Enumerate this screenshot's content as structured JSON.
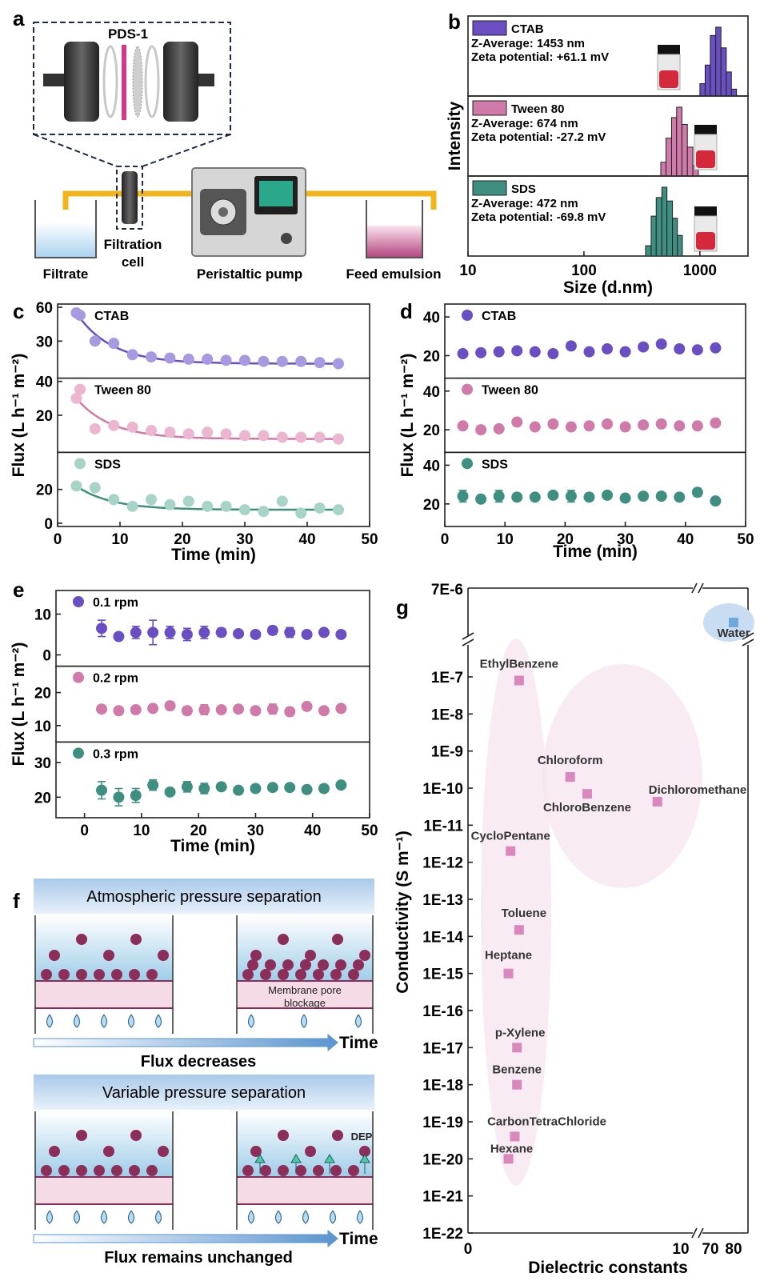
{
  "panel_letters": [
    "a",
    "b",
    "c",
    "d",
    "e",
    "f",
    "g"
  ],
  "colors": {
    "purple": "#6a4fc2",
    "pink": "#cf7aa8",
    "teal": "#3f8f80",
    "bead": "#8c2e5a",
    "water_drop": "#b9dcf0",
    "membrane": "#f5dbe6"
  },
  "panel_a": {
    "zoom_label": "PDS-1",
    "labels": {
      "filtrate": "Filtrate",
      "filtration_cell": "Filtration\ncell",
      "pump": "Peristaltic pump",
      "feed": "Feed emulsion"
    }
  },
  "chart_data": [
    {
      "id": "b",
      "type": "bar",
      "xscale": "log",
      "xlim": [
        10,
        2600
      ],
      "xlabel": "Size (d.nm)",
      "ylabel": "Intensity",
      "xticks": [
        {
          "v": 10,
          "label": "10"
        },
        {
          "v": 100,
          "label": "100"
        },
        {
          "v": 1000,
          "label": "1000"
        }
      ],
      "series": [
        {
          "name": "CTAB",
          "color": "#6a4fc2",
          "z_average": "Z-Average: 1453 nm",
          "zeta": "Zeta potential: +61.1 mV",
          "bins": [
            1000,
            1110,
            1230,
            1370,
            1520,
            1690,
            1870
          ],
          "rel_height": [
            0.18,
            0.45,
            0.88,
            1.0,
            0.7,
            0.35,
            0.1
          ]
        },
        {
          "name": "Tween 80",
          "color": "#cf7aa8",
          "z_average": "Z-Average: 674 nm",
          "zeta": "Zeta potential: -27.2 mV",
          "bins": [
            460,
            510,
            570,
            630,
            700,
            780,
            870
          ],
          "rel_height": [
            0.2,
            0.55,
            0.85,
            1.0,
            0.75,
            0.42,
            0.15
          ]
        },
        {
          "name": "SDS",
          "color": "#3f8f80",
          "z_average": "Z-Average: 472 nm",
          "zeta": "Zeta potential: -69.8 mV",
          "bins": [
            340,
            380,
            420,
            470,
            520,
            580,
            640
          ],
          "rel_height": [
            0.15,
            0.58,
            0.85,
            1.0,
            0.8,
            0.55,
            0.3
          ]
        }
      ]
    },
    {
      "id": "c",
      "type": "scatter",
      "xlabel": "Time (min)",
      "ylabel": "Flux (L h⁻¹ m⁻²)",
      "xlim": [
        0,
        50
      ],
      "xticks": [
        0,
        10,
        20,
        30,
        40,
        50
      ],
      "x": [
        3,
        6,
        9,
        12,
        15,
        18,
        21,
        24,
        27,
        30,
        33,
        36,
        39,
        42,
        45
      ],
      "fit": true,
      "series": [
        {
          "name": "CTAB",
          "color": "#a89ae0",
          "line_color": "#6a4fc2",
          "ylim": [
            0,
            60
          ],
          "yticks": [
            {
              "v": 30,
              "label": "30"
            },
            {
              "v": 60,
              "label": "60"
            }
          ],
          "y": [
            55,
            30,
            28,
            18,
            16,
            15,
            14,
            14,
            13,
            13,
            12,
            12,
            12,
            11,
            10
          ]
        },
        {
          "name": "Tween 80",
          "color": "#edb6d0",
          "line_color": "#cf7aa8",
          "ylim": [
            0,
            40
          ],
          "yticks": [
            {
              "v": 20,
              "label": "20"
            },
            {
              "v": 40,
              "label": "40"
            }
          ],
          "y": [
            30,
            12,
            14,
            13,
            11,
            10,
            9,
            10,
            9,
            8,
            8,
            7,
            7,
            7,
            6
          ]
        },
        {
          "name": "SDS",
          "color": "#a7d3c9",
          "line_color": "#3f8f80",
          "ylim": [
            0,
            40
          ],
          "yticks": [
            {
              "v": 0,
              "label": "0"
            },
            {
              "v": 20,
              "label": "20"
            }
          ],
          "y": [
            22,
            21,
            14,
            10,
            14,
            11,
            13,
            10,
            10,
            8,
            7,
            13,
            6,
            9,
            8
          ]
        }
      ]
    },
    {
      "id": "d",
      "type": "scatter",
      "xlabel": "Time (min)",
      "ylabel": "Flux (L h⁻¹ m⁻²)",
      "xlim": [
        0,
        50
      ],
      "xticks": [
        0,
        10,
        20,
        30,
        40,
        50
      ],
      "x": [
        3,
        6,
        9,
        12,
        15,
        18,
        21,
        24,
        27,
        30,
        33,
        36,
        39,
        42,
        45
      ],
      "series": [
        {
          "name": "CTAB",
          "color": "#6a4fc2",
          "ylim": [
            10,
            45
          ],
          "yticks": [
            {
              "v": 20,
              "label": "20"
            },
            {
              "v": 40,
              "label": "40"
            }
          ],
          "y": [
            21,
            21.5,
            22,
            22.5,
            22,
            21,
            25,
            22,
            23.5,
            22,
            24.5,
            26,
            23.5,
            23,
            24
          ],
          "err": [
            1,
            1,
            1,
            1,
            1,
            1,
            1,
            1,
            1,
            1,
            1.5,
            1,
            1,
            1,
            1
          ]
        },
        {
          "name": "Tween 80",
          "color": "#cf7aa8",
          "ylim": [
            10,
            45
          ],
          "yticks": [
            {
              "v": 20,
              "label": "20"
            },
            {
              "v": 40,
              "label": "40"
            }
          ],
          "y": [
            22,
            20,
            20.5,
            24,
            21.5,
            23,
            21.5,
            22,
            23,
            21.5,
            22.5,
            23,
            22,
            22,
            23.5
          ],
          "err": [
            1.5,
            1.5,
            1,
            1,
            1,
            1,
            1,
            1,
            1,
            1,
            1,
            1,
            1,
            1,
            1
          ]
        },
        {
          "name": "SDS",
          "color": "#3f8f80",
          "ylim": [
            10,
            45
          ],
          "yticks": [
            {
              "v": 20,
              "label": "20"
            },
            {
              "v": 40,
              "label": "40"
            }
          ],
          "y": [
            24,
            22.5,
            24,
            23.5,
            23.5,
            24.5,
            24,
            23.5,
            24.5,
            23,
            24,
            24,
            23.5,
            26,
            21.5
          ],
          "err": [
            3,
            1,
            3,
            1,
            1,
            1,
            3,
            1,
            1,
            1,
            1,
            1,
            1,
            2,
            1
          ]
        }
      ]
    },
    {
      "id": "e",
      "type": "scatter",
      "xlabel": "Time (min)",
      "ylabel": "Flux (L h⁻¹ m⁻²)",
      "xlim": [
        -5,
        50
      ],
      "xticks": [
        0,
        10,
        20,
        30,
        40,
        50
      ],
      "x": [
        3,
        6,
        9,
        12,
        15,
        18,
        21,
        24,
        27,
        30,
        33,
        36,
        39,
        42,
        45
      ],
      "series": [
        {
          "name": "0.1 rpm",
          "color": "#6a4fc2",
          "ylim": [
            -2,
            15
          ],
          "yticks": [
            {
              "v": 0,
              "label": "0"
            },
            {
              "v": 10,
              "label": "10"
            }
          ],
          "y": [
            6.5,
            4.5,
            5.5,
            5.5,
            5.5,
            5,
            5.5,
            5.5,
            5.2,
            5,
            6,
            5.5,
            5,
            5.5,
            5
          ],
          "err": [
            2,
            0.6,
            1.5,
            3,
            1.5,
            1.5,
            1.5,
            1,
            0.5,
            0.5,
            1,
            1.2,
            0.5,
            0.5,
            0.5
          ]
        },
        {
          "name": "0.2 rpm",
          "color": "#cf7aa8",
          "ylim": [
            6,
            27
          ],
          "yticks": [
            {
              "v": 10,
              "label": "10"
            },
            {
              "v": 20,
              "label": "20"
            }
          ],
          "y": [
            15,
            14.5,
            14.8,
            15.2,
            16,
            14.5,
            14.8,
            14.8,
            15,
            14.5,
            15,
            14.2,
            15.8,
            14.5,
            15.2
          ],
          "err": [
            0.6,
            0.5,
            0.5,
            0.5,
            1.2,
            1.2,
            1.5,
            0.5,
            0.5,
            0.5,
            1.5,
            1.2,
            0.5,
            0.5,
            0.5
          ]
        },
        {
          "name": "0.3 rpm",
          "color": "#3f8f80",
          "ylim": [
            15,
            35
          ],
          "yticks": [
            {
              "v": 20,
              "label": "20"
            },
            {
              "v": 30,
              "label": "30"
            }
          ],
          "y": [
            22,
            20,
            20.5,
            23.5,
            21.5,
            23,
            22.5,
            23,
            22,
            22.5,
            22.8,
            22.8,
            22.2,
            22.5,
            23.5
          ],
          "err": [
            2.5,
            2.5,
            2,
            1.5,
            0.5,
            1.5,
            1.5,
            0.5,
            0.5,
            0.5,
            0.5,
            0.5,
            0.8,
            0.5,
            0.5
          ]
        }
      ]
    },
    {
      "id": "g",
      "type": "scatter",
      "xlabel": "Dielectric constants",
      "ylabel": "Conductivity (S m⁻¹)",
      "marker": "square",
      "yscale": "log",
      "ylim": [
        "1E-22",
        "1E-7"
      ],
      "xlim": [
        0,
        10
      ],
      "y_break": true,
      "x_break": true,
      "yticks": [
        "1E-22",
        "1E-21",
        "1E-20",
        "1E-19",
        "1E-18",
        "1E-17",
        "1E-16",
        "1E-15",
        "1E-14",
        "1E-13",
        "1E-12",
        "1E-11",
        "1E-10",
        "1E-9",
        "1E-8",
        "1E-7"
      ],
      "ytick_top": "7E-6",
      "xticks": [
        {
          "v": 0,
          "label": "0"
        },
        {
          "v": 10,
          "label": "10"
        }
      ],
      "xticks_after_break": [
        "70",
        "80"
      ],
      "points": [
        {
          "label": "Water",
          "x": 80,
          "y": 5.5e-06,
          "color": "#6fa8dc"
        },
        {
          "label": "EthylBenzene",
          "x": 2.4,
          "y": 8e-08,
          "color": "#d988bb"
        },
        {
          "label": "Chloroform",
          "x": 4.8,
          "y": 2e-10,
          "color": "#d988bb"
        },
        {
          "label": "ChloroBenzene",
          "x": 5.6,
          "y": 7e-11,
          "color": "#d988bb"
        },
        {
          "label": "Dichloromethane",
          "x": 8.9,
          "y": 4.3e-11,
          "color": "#d988bb"
        },
        {
          "label": "CycloPentane",
          "x": 2.0,
          "y": 2e-12,
          "color": "#d988bb"
        },
        {
          "label": "Toluene",
          "x": 2.4,
          "y": 1.5e-14,
          "color": "#d988bb"
        },
        {
          "label": "Heptane",
          "x": 1.9,
          "y": 1e-15,
          "color": "#d988bb"
        },
        {
          "label": "p-Xylene",
          "x": 2.3,
          "y": 1e-17,
          "color": "#d988bb"
        },
        {
          "label": "Benzene",
          "x": 2.3,
          "y": 1e-18,
          "color": "#d988bb"
        },
        {
          "label": "CarbonTetraChloride",
          "x": 2.2,
          "y": 4e-20,
          "color": "#d988bb"
        },
        {
          "label": "Hexane",
          "x": 1.9,
          "y": 1e-20,
          "color": "#d988bb"
        }
      ]
    }
  ],
  "panel_f": {
    "top_title": "Atmospheric pressure separation",
    "top_caption": "Flux decreases",
    "bottom_title": "Variable pressure separation",
    "bottom_caption": "Flux remains unchanged",
    "blockage_label": "Membrane pore\nblockage",
    "dep_label": "DEP",
    "time_label": "Time"
  }
}
